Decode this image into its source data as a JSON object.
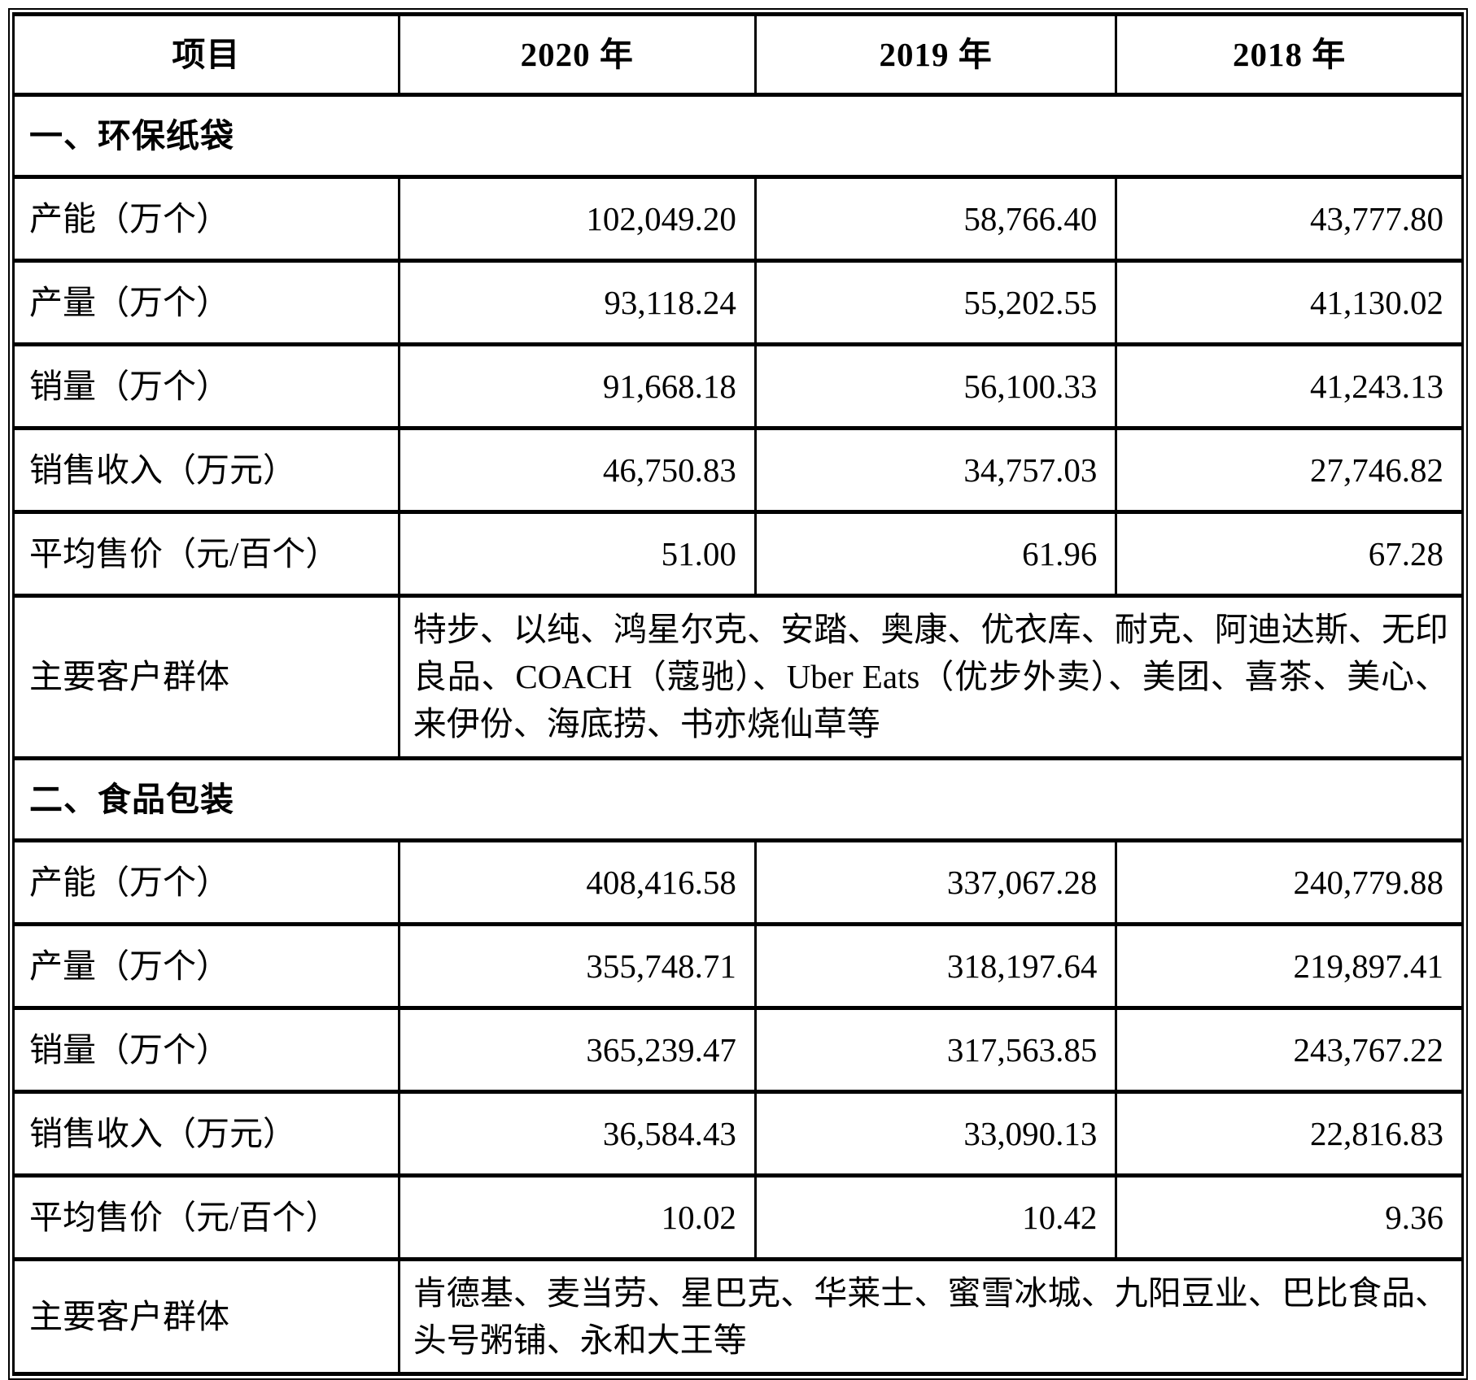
{
  "colors": {
    "text": "#000000",
    "background": "#ffffff",
    "border": "#000000"
  },
  "table": {
    "header": {
      "item": "项目",
      "years": [
        "2020 年",
        "2019 年",
        "2018 年"
      ]
    },
    "sections": [
      {
        "title": "一、环保纸袋",
        "rows": [
          {
            "label": "产能（万个）",
            "values": [
              "102,049.20",
              "58,766.40",
              "43,777.80"
            ]
          },
          {
            "label": "产量（万个）",
            "values": [
              "93,118.24",
              "55,202.55",
              "41,130.02"
            ]
          },
          {
            "label": "销量（万个）",
            "values": [
              "91,668.18",
              "56,100.33",
              "41,243.13"
            ]
          },
          {
            "label": "销售收入（万元）",
            "values": [
              "46,750.83",
              "34,757.03",
              "27,746.82"
            ]
          },
          {
            "label": "平均售价（元/百个）",
            "values": [
              "51.00",
              "61.96",
              "67.28"
            ]
          }
        ],
        "customers_label": "主要客户群体",
        "customers": "特步、以纯、鸿星尔克、安踏、奥康、优衣库、耐克、阿迪达斯、无印良品、COACH（蔻驰）、Uber Eats（优步外卖）、美团、喜茶、美心、来伊份、海底捞、书亦烧仙草等"
      },
      {
        "title": "二、食品包装",
        "rows": [
          {
            "label": "产能（万个）",
            "values": [
              "408,416.58",
              "337,067.28",
              "240,779.88"
            ]
          },
          {
            "label": "产量（万个）",
            "values": [
              "355,748.71",
              "318,197.64",
              "219,897.41"
            ]
          },
          {
            "label": "销量（万个）",
            "values": [
              "365,239.47",
              "317,563.85",
              "243,767.22"
            ]
          },
          {
            "label": "销售收入（万元）",
            "values": [
              "36,584.43",
              "33,090.13",
              "22,816.83"
            ]
          },
          {
            "label": "平均售价（元/百个）",
            "values": [
              "10.02",
              "10.42",
              "9.36"
            ]
          }
        ],
        "customers_label": "主要客户群体",
        "customers": "肯德基、麦当劳、星巴克、华莱士、蜜雪冰城、九阳豆业、巴比食品、头号粥铺、永和大王等"
      }
    ]
  }
}
